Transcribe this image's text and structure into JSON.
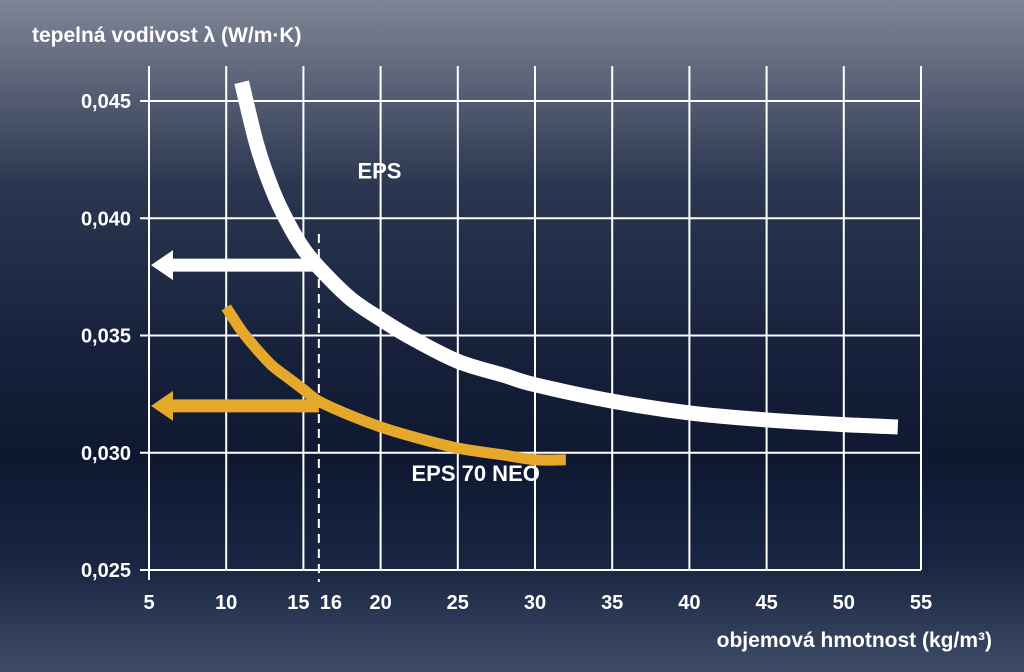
{
  "chart_data": {
    "type": "line",
    "ylabel": "tepelná vodivost λ (W/m·K)",
    "xlabel": "objemová hmotnost (kg/m³)",
    "xlim": [
      5,
      55
    ],
    "ylim": [
      0.025,
      0.045
    ],
    "x_ticks": [
      5,
      10,
      15,
      16,
      20,
      25,
      30,
      35,
      40,
      45,
      50,
      55
    ],
    "x_tick_labels": [
      "5",
      "10",
      "15",
      "16",
      "20",
      "25",
      "30",
      "35",
      "40",
      "45",
      "50",
      "55"
    ],
    "y_ticks": [
      0.025,
      0.03,
      0.035,
      0.04,
      0.045
    ],
    "y_tick_labels": [
      "0,025",
      "0,030",
      "0,035",
      "0,040",
      "0,045"
    ],
    "grid": true,
    "series": [
      {
        "name": "EPS",
        "color": "#ffffff",
        "x": [
          11,
          12,
          13,
          14,
          15,
          16,
          18,
          20,
          22,
          25,
          28,
          30,
          35,
          40,
          45,
          50,
          53.5
        ],
        "y": [
          0.0458,
          0.0431,
          0.0412,
          0.0398,
          0.0387,
          0.0379,
          0.0366,
          0.0357,
          0.0349,
          0.0339,
          0.0333,
          0.0329,
          0.0322,
          0.0317,
          0.0314,
          0.0312,
          0.0311
        ]
      },
      {
        "name": "EPS 70 NEO",
        "color": "#e6a82b",
        "x": [
          10,
          11,
          12,
          13,
          14,
          15,
          16,
          18,
          20,
          22,
          25,
          28,
          30,
          32
        ],
        "y": [
          0.0362,
          0.0352,
          0.0344,
          0.0337,
          0.0332,
          0.0327,
          0.0322,
          0.0316,
          0.0311,
          0.0307,
          0.0302,
          0.0299,
          0.0297,
          0.0297
        ]
      }
    ],
    "reference_line": {
      "x": 16,
      "style": "dashed",
      "arrows": [
        {
          "series": "EPS",
          "y": 0.038,
          "color": "#ffffff"
        },
        {
          "series": "EPS 70 NEO",
          "y": 0.032,
          "color": "#e6a82b"
        }
      ]
    },
    "annotations": [
      {
        "text": "EPS",
        "x": 18.5,
        "y": 0.0417
      },
      {
        "text": "EPS 70 NEO",
        "x": 22,
        "y": 0.0288
      }
    ]
  }
}
